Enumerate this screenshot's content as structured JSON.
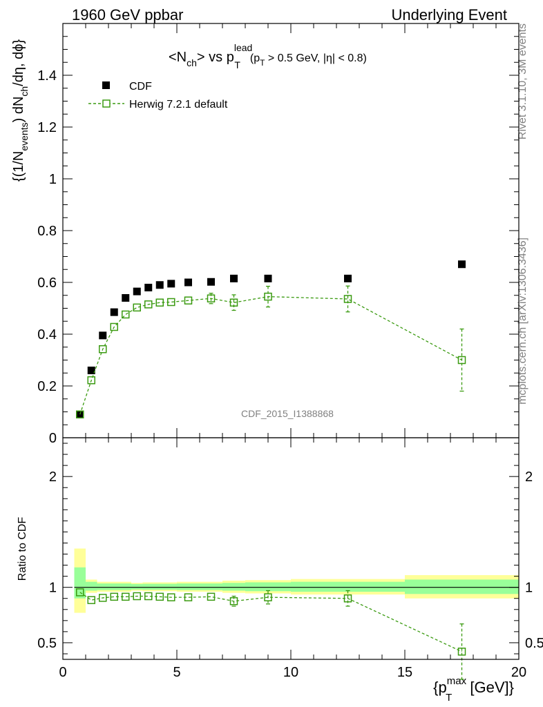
{
  "header": {
    "left_label": "1960 GeV ppbar",
    "right_label": "Underlying Event"
  },
  "side_labels": {
    "rivet": "Rivet 3.1.10,  3M events",
    "mcplots": "mcplots.cern.ch [arXiv:1306.3436]"
  },
  "watermark": "CDF_2015_I1388868",
  "title": {
    "p1": "<N",
    "p1_sub": "ch",
    "p2": "> vs p",
    "p2_sup": "lead",
    "p2_sub": "T",
    "p3": "(p",
    "p3_sub": "T",
    "p4": " > 0.5 GeV, |η| < 0.8)"
  },
  "ylabel": {
    "a": "{(1/N",
    "a_sub": "events",
    "b": ") dN",
    "b_sub": "ch",
    "c": "/dη, dϕ}"
  },
  "ratio_ylabel": "Ratio to CDF",
  "xlabel": {
    "a": "{p",
    "a_sup": "max",
    "a_sub": "T",
    "b": " [GeV]}"
  },
  "legend": {
    "cdf": "CDF",
    "herwig": "Herwig 7.2.1 default"
  },
  "colors": {
    "mc": "#3a9a10",
    "band_yellow": "#ffff99",
    "band_green": "#99ff99"
  },
  "chart_data": [
    {
      "type": "scatter",
      "panel": "main",
      "xlim": [
        0,
        20
      ],
      "ylim": [
        0,
        1.6
      ],
      "x_ticks": [
        0,
        5,
        10,
        15,
        20
      ],
      "y_ticks": [
        0,
        0.2,
        0.4,
        0.6,
        0.8,
        1,
        1.2,
        1.4
      ],
      "y_tick_labels": [
        "0",
        "0.2",
        "0.4",
        "0.6",
        "0.8",
        "1",
        "1.2",
        "1.4"
      ],
      "series": [
        {
          "name": "CDF",
          "style": "filled-square",
          "x": [
            0.75,
            1.25,
            1.75,
            2.25,
            2.75,
            3.25,
            3.75,
            4.25,
            4.75,
            5.5,
            6.5,
            7.5,
            9.0,
            12.5,
            17.5
          ],
          "y": [
            0.09,
            0.26,
            0.395,
            0.485,
            0.54,
            0.565,
            0.58,
            0.59,
            0.595,
            0.6,
            0.602,
            0.615,
            0.615,
            0.615,
            0.67
          ]
        },
        {
          "name": "Herwig 7.2.1 default",
          "style": "open-square-dashed",
          "x": [
            0.75,
            1.25,
            1.75,
            2.25,
            2.75,
            3.25,
            3.75,
            4.25,
            4.75,
            5.5,
            6.5,
            7.5,
            9.0,
            12.5,
            17.5
          ],
          "y": [
            0.09,
            0.222,
            0.342,
            0.428,
            0.476,
            0.503,
            0.515,
            0.522,
            0.524,
            0.53,
            0.538,
            0.522,
            0.545,
            0.536,
            0.3
          ],
          "err": [
            0.005,
            0.01,
            0.012,
            0.01,
            0.01,
            0.01,
            0.01,
            0.01,
            0.01,
            0.012,
            0.02,
            0.03,
            0.04,
            0.05,
            0.12
          ]
        }
      ]
    },
    {
      "type": "scatter",
      "panel": "ratio",
      "xlim": [
        0,
        20
      ],
      "ylim": [
        0.35,
        2.35
      ],
      "x_ticks": [
        0,
        5,
        10,
        15,
        20
      ],
      "x_tick_labels": [
        "0",
        "5",
        "10",
        "15",
        "20"
      ],
      "y_ticks": [
        0.5,
        1,
        2
      ],
      "y_tick_labels": [
        "0.5",
        "1",
        "2"
      ],
      "bins": [
        0.5,
        1.0,
        1.5,
        2.0,
        2.5,
        3.0,
        3.5,
        4.0,
        4.5,
        5.0,
        6.0,
        7.0,
        8.0,
        10.0,
        15.0,
        20.0
      ],
      "band_yellow": [
        [
          0.77,
          1.35
        ],
        [
          0.95,
          1.07
        ],
        [
          0.96,
          1.05
        ],
        [
          0.96,
          1.05
        ],
        [
          0.96,
          1.05
        ],
        [
          0.97,
          1.04
        ],
        [
          0.965,
          1.045
        ],
        [
          0.965,
          1.045
        ],
        [
          0.965,
          1.045
        ],
        [
          0.96,
          1.05
        ],
        [
          0.96,
          1.05
        ],
        [
          0.95,
          1.06
        ],
        [
          0.945,
          1.065
        ],
        [
          0.935,
          1.075
        ],
        [
          0.9,
          1.11
        ]
      ],
      "band_green": [
        [
          0.9,
          1.18
        ],
        [
          0.97,
          1.05
        ],
        [
          0.975,
          1.035
        ],
        [
          0.975,
          1.035
        ],
        [
          0.975,
          1.035
        ],
        [
          0.98,
          1.03
        ],
        [
          0.978,
          1.032
        ],
        [
          0.978,
          1.032
        ],
        [
          0.978,
          1.032
        ],
        [
          0.975,
          1.035
        ],
        [
          0.975,
          1.035
        ],
        [
          0.97,
          1.04
        ],
        [
          0.965,
          1.045
        ],
        [
          0.96,
          1.05
        ],
        [
          0.94,
          1.07
        ]
      ],
      "series": [
        {
          "name": "Herwig 7.2.1 default",
          "style": "open-square-dashed",
          "x": [
            0.75,
            1.25,
            1.75,
            2.25,
            2.75,
            3.25,
            3.75,
            4.25,
            4.75,
            5.5,
            6.5,
            7.5,
            9.0,
            12.5,
            17.5
          ],
          "y": [
            0.955,
            0.885,
            0.905,
            0.915,
            0.915,
            0.92,
            0.92,
            0.915,
            0.91,
            0.91,
            0.915,
            0.875,
            0.91,
            0.9,
            0.42
          ],
          "err": [
            0.01,
            0.01,
            0.01,
            0.01,
            0.01,
            0.01,
            0.01,
            0.01,
            0.01,
            0.015,
            0.03,
            0.045,
            0.06,
            0.07,
            0.25
          ]
        }
      ]
    }
  ]
}
